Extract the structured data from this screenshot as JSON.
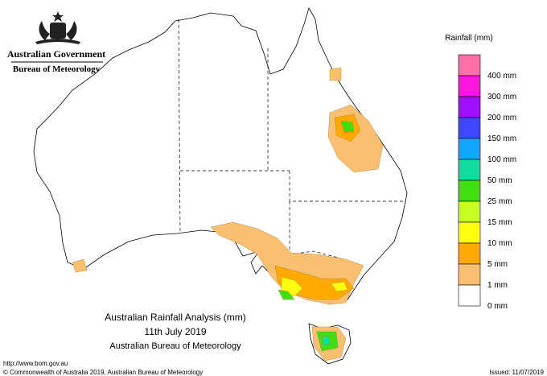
{
  "header": {
    "government": "Australian Government",
    "agency": "Bureau of Meteorology"
  },
  "legend": {
    "title": "Rainfall (mm)",
    "items": [
      {
        "color": "#ff6fa8",
        "label": "400 mm"
      },
      {
        "color": "#ff14e0",
        "label": "300 mm"
      },
      {
        "color": "#a010ff",
        "label": "200 mm"
      },
      {
        "color": "#4048ff",
        "label": "150 mm"
      },
      {
        "color": "#10a8ff",
        "label": "100 mm"
      },
      {
        "color": "#10dca0",
        "label": "50 mm"
      },
      {
        "color": "#40e010",
        "label": "25 mm"
      },
      {
        "color": "#c8ff20",
        "label": "15 mm"
      },
      {
        "color": "#ffff10",
        "label": "10 mm"
      },
      {
        "color": "#ffaa00",
        "label": "5 mm"
      },
      {
        "color": "#f8c070",
        "label": "1 mm"
      },
      {
        "color": "#ffffff",
        "label": "0 mm"
      }
    ]
  },
  "map_title": {
    "line1": "Australian Rainfall Analysis (mm)",
    "line2": "11th July 2019",
    "line3": "Australian Bureau of Meteorology"
  },
  "footer": {
    "url": "http://www.bom.gov.au",
    "copyright": "© Commonwealth of Australia 2019, Australian Bureau of Meteorology",
    "issued": "Issued: 11/07/2019"
  }
}
